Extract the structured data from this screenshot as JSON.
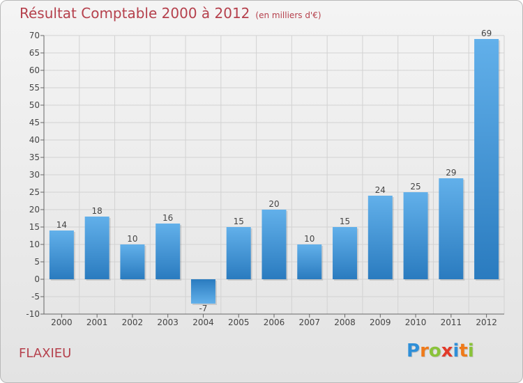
{
  "header": {
    "title": "Résultat Comptable 2000 à 2012",
    "subtitle": "(en milliers d'€)"
  },
  "footer": {
    "commune": "FLAXIEU",
    "logo_letters": [
      "P",
      "r",
      "o",
      "x",
      "i",
      "t",
      "i"
    ],
    "logo_colors": [
      "#2f8fd8",
      "#ef7a1a",
      "#8ac33a",
      "#e23a2a",
      "#2f8fd8",
      "#ef7a1a",
      "#8ac33a"
    ]
  },
  "chart_data": {
    "type": "bar",
    "title": "Résultat Comptable 2000 à 2012",
    "subtitle": "(en milliers d'€)",
    "xlabel": "",
    "ylabel": "",
    "categories": [
      "2000",
      "2001",
      "2002",
      "2003",
      "2004",
      "2005",
      "2006",
      "2007",
      "2008",
      "2009",
      "2010",
      "2011",
      "2012"
    ],
    "values": [
      14,
      18,
      10,
      16,
      -7,
      15,
      20,
      10,
      15,
      24,
      25,
      29,
      69
    ],
    "ylim": [
      -10,
      70
    ],
    "yticks": [
      -10,
      -5,
      0,
      5,
      10,
      15,
      20,
      25,
      30,
      35,
      40,
      45,
      50,
      55,
      60,
      65,
      70
    ],
    "grid": true,
    "bar_color": "#3d8fd0",
    "bar_color_light": "#62b0ea"
  }
}
